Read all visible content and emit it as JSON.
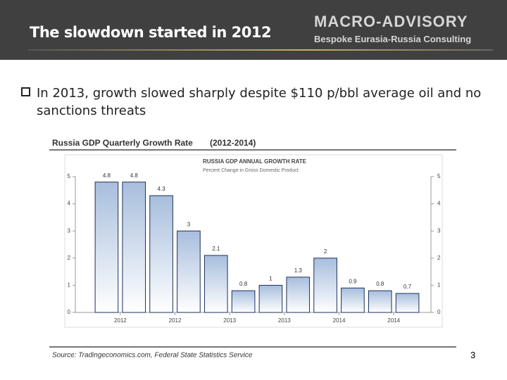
{
  "header": {
    "title": "The slowdown started in 2012",
    "logo": "MACRO-ADVISORY",
    "tagline": "Bespoke Eurasia-Russia Consulting"
  },
  "bullet": "In 2013, growth slowed sharply despite $110 p/bbl average oil and no sanctions threats",
  "figure": {
    "heading": "Russia GDP Quarterly Growth Rate",
    "period": "(2012-2014)",
    "source": "Source: Tradingeconomics.com, Federal State Statistics Service"
  },
  "page_number": "3",
  "chart_data": {
    "type": "bar",
    "title": "RUSSIA GDP ANNUAL GROWTH RATE",
    "subtitle": "Percent Change in Gross Domestic Product",
    "values": [
      4.8,
      4.8,
      4.3,
      3,
      2.1,
      0.8,
      1,
      1.3,
      2,
      0.9,
      0.8,
      0.7
    ],
    "xtick_labels": [
      "2012",
      "2012",
      "2013",
      "2013",
      "2014",
      "2014"
    ],
    "ylim": [
      0,
      5
    ],
    "yticks": [
      0,
      1,
      2,
      3,
      4,
      5
    ],
    "color": "#1f2f5c"
  }
}
